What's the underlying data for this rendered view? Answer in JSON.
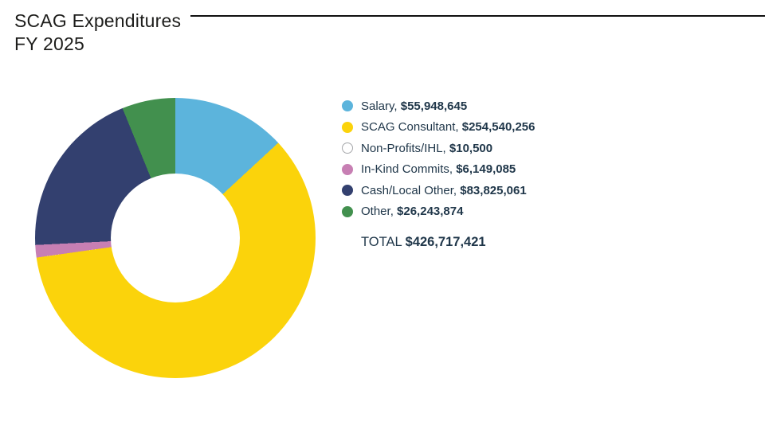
{
  "header": {
    "title_line1": "SCAG Expenditures",
    "title_line2": "FY 2025"
  },
  "legend": {
    "separator": ", ",
    "total_separator": " "
  },
  "chart_data": {
    "type": "pie",
    "subtype": "donut",
    "title": "SCAG Expenditures FY 2025",
    "start_angle_deg": 0,
    "direction": "clockwise",
    "inner_radius_ratio": 0.46,
    "legend_position": "right",
    "slices": [
      {
        "label": "Salary",
        "value": 55948645,
        "display": "$55,948,645",
        "color": "#5CB4DC"
      },
      {
        "label": "SCAG Consultant",
        "value": 254540256,
        "display": "$254,540,256",
        "color": "#FBD30B"
      },
      {
        "label": "Non-Profits/IHL",
        "value": 10500,
        "display": "$10,500",
        "color": "#FFFFFF",
        "border": "#A5A7AA"
      },
      {
        "label": "In-Kind Commits",
        "value": 6149085,
        "display": "$6,149,085",
        "color": "#C77FB3"
      },
      {
        "label": "Cash/Local Other",
        "value": 83825061,
        "display": "$83,825,061",
        "color": "#33406F"
      },
      {
        "label": "Other",
        "value": 26243874,
        "display": "$26,243,874",
        "color": "#42904E"
      }
    ],
    "total": {
      "label": "TOTAL",
      "value": 426717421,
      "display": "$426,717,421"
    }
  }
}
